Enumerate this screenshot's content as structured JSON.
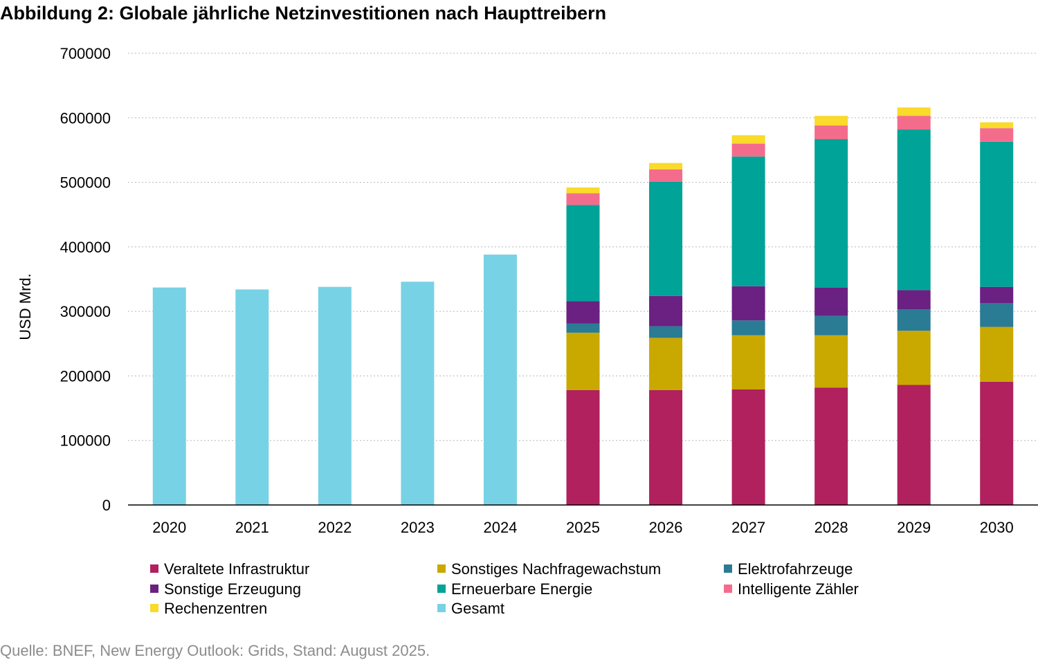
{
  "title": "Abbildung 2: Globale jährliche Netzinvestitionen nach Haupttreibern",
  "source": "Quelle: BNEF, New Energy Outlook: Grids, Stand: August 2025.",
  "chart_data": {
    "type": "bar",
    "stacked": true,
    "ylabel": "USD Mrd.",
    "ylim": [
      0,
      700000
    ],
    "yticks": [
      0,
      100000,
      200000,
      300000,
      400000,
      500000,
      600000,
      700000
    ],
    "grid": true,
    "legend_position": "bottom",
    "categories": [
      "2020",
      "2021",
      "2022",
      "2023",
      "2024",
      "2025",
      "2026",
      "2027",
      "2028",
      "2029",
      "2030"
    ],
    "series": [
      {
        "name": "Veraltete Infrastruktur",
        "color": "#b0215e",
        "values": [
          null,
          null,
          null,
          null,
          null,
          178000,
          178000,
          179000,
          182000,
          186000,
          191000
        ]
      },
      {
        "name": "Sonstiges Nachfragewachstum",
        "color": "#c9a800",
        "values": [
          null,
          null,
          null,
          null,
          null,
          89000,
          81000,
          84000,
          81000,
          84000,
          85000
        ]
      },
      {
        "name": "Elektrofahrzeuge",
        "color": "#2a7b94",
        "values": [
          null,
          null,
          null,
          null,
          null,
          14000,
          18000,
          23000,
          30000,
          33000,
          37000
        ]
      },
      {
        "name": "Sonstige Erzeugung",
        "color": "#6a2182",
        "values": [
          null,
          null,
          null,
          null,
          null,
          35000,
          47000,
          53000,
          44000,
          30000,
          25000
        ]
      },
      {
        "name": "Erneuerbare Energie",
        "color": "#00a397",
        "values": [
          null,
          null,
          null,
          null,
          null,
          149000,
          177000,
          201000,
          230000,
          249000,
          225000
        ]
      },
      {
        "name": "Intelligente Zähler",
        "color": "#f46c8c",
        "values": [
          null,
          null,
          null,
          null,
          null,
          18000,
          19000,
          20000,
          21000,
          21000,
          21000
        ]
      },
      {
        "name": "Rechenzentren",
        "color": "#fada2a",
        "values": [
          null,
          null,
          null,
          null,
          null,
          9000,
          10000,
          13000,
          15000,
          13000,
          9000
        ]
      },
      {
        "name": "Gesamt",
        "color": "#78d2e5",
        "values": [
          337000,
          334000,
          338000,
          346000,
          388000,
          null,
          null,
          null,
          null,
          null,
          null
        ]
      }
    ]
  }
}
